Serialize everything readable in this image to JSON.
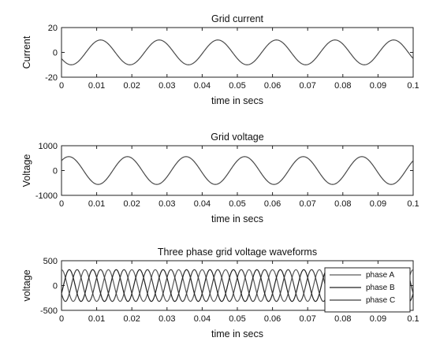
{
  "chart_data": [
    {
      "type": "line",
      "title": "Grid current",
      "xlabel": "time in secs",
      "ylabel": "Current",
      "xlim": [
        0,
        0.1
      ],
      "ylim": [
        -20,
        20
      ],
      "xticks": [
        "0",
        "0.01",
        "0.02",
        "0.03",
        "0.04",
        "0.05",
        "0.06",
        "0.07",
        "0.08",
        "0.09",
        "0.1"
      ],
      "yticks": [
        "20",
        "0",
        "-20"
      ],
      "grid": false,
      "series": [
        {
          "amplitude": 10,
          "frequency_hz": 60,
          "phase_deg": -150,
          "color": "#4a4a4a"
        }
      ]
    },
    {
      "type": "line",
      "title": "Grid voltage",
      "xlabel": "time in secs",
      "ylabel": "Voltage",
      "xlim": [
        0,
        0.1
      ],
      "ylim": [
        -1000,
        1000
      ],
      "xticks": [
        "0",
        "0.01",
        "0.02",
        "0.03",
        "0.04",
        "0.05",
        "0.06",
        "0.07",
        "0.08",
        "0.09",
        "0.1"
      ],
      "yticks": [
        "1000",
        "0",
        "-1000"
      ],
      "grid": false,
      "series": [
        {
          "amplitude": 560,
          "frequency_hz": 60,
          "phase_deg": 45,
          "color": "#4a4a4a"
        }
      ]
    },
    {
      "type": "line",
      "title": "Three phase grid voltage waveforms",
      "xlabel": "time in secs",
      "ylabel": "voltage",
      "xlim": [
        0,
        0.1
      ],
      "ylim": [
        -500,
        500
      ],
      "xticks": [
        "0",
        "0.01",
        "0.02",
        "0.03",
        "0.04",
        "0.05",
        "0.06",
        "0.07",
        "0.08",
        "0.09",
        "0.1"
      ],
      "yticks": [
        "500",
        "0",
        "-500"
      ],
      "grid": false,
      "legend_position": "right",
      "series": [
        {
          "name": "phase A",
          "amplitude": 320,
          "frequency_hz": 150,
          "phase_deg": 90,
          "color": "#5a5a5a"
        },
        {
          "name": "phase B",
          "amplitude": 320,
          "frequency_hz": 150,
          "phase_deg": -30,
          "color": "#222222"
        },
        {
          "name": "phase C",
          "amplitude": 320,
          "frequency_hz": 150,
          "phase_deg": 210,
          "color": "#3c3c3c"
        }
      ]
    }
  ]
}
